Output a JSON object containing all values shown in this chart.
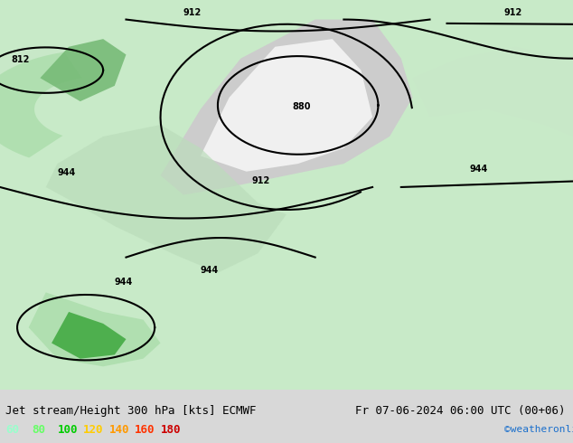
{
  "title_left": "Jet stream/Height 300 hPa [kts] ECMWF",
  "title_right": "Fr 07-06-2024 06:00 UTC (00+06)",
  "copyright": "©weatheronline.co.uk",
  "legend_values": [
    60,
    80,
    100,
    120,
    140,
    160,
    180
  ],
  "legend_colors": [
    "#99ffcc",
    "#66ff66",
    "#00cc00",
    "#ffcc00",
    "#ff9900",
    "#ff3300",
    "#cc0000"
  ],
  "bg_color": "#e8f5e9",
  "map_bg": "#c8eac8",
  "figure_width": 6.34,
  "figure_height": 4.9,
  "dpi": 100,
  "bottom_bar_color": "#e0e0e0",
  "title_color": "#000000",
  "title_right_color": "#000000",
  "copyright_color": "#1a6fcc",
  "contour_color": "#000000",
  "green_shades": [
    "#d4f0d4",
    "#aaddaa",
    "#77cc77",
    "#44aa44"
  ],
  "gray_shade": "#cccccc"
}
